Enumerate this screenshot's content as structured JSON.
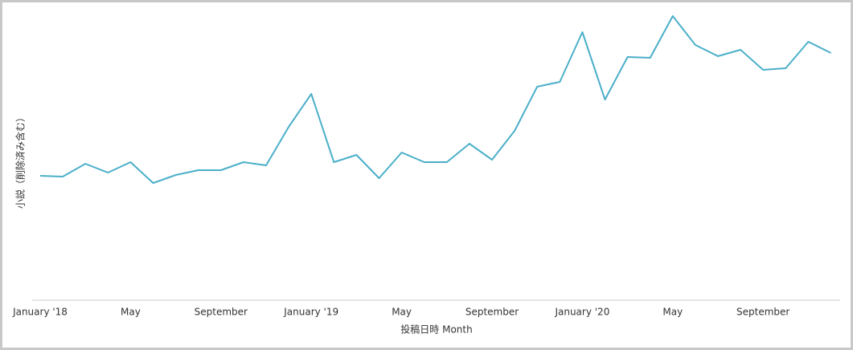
{
  "chart_data": {
    "type": "line",
    "x_label": "投稿日時 Month",
    "y_label": "小説（削除済み含む）",
    "categories": [
      "January '18",
      null,
      null,
      null,
      "May",
      null,
      null,
      null,
      "September",
      null,
      null,
      null,
      "January '19",
      null,
      null,
      null,
      "May",
      null,
      null,
      null,
      "September",
      null,
      null,
      null,
      "January '20",
      null,
      null,
      null,
      "May",
      null,
      null,
      null,
      "September",
      null,
      null,
      null
    ],
    "series": [
      {
        "color": "#4bafc9",
        "values": [
          155,
          154,
          170,
          159,
          172,
          146,
          156,
          162,
          162,
          172,
          168,
          216,
          257,
          172,
          181,
          152,
          184,
          172,
          172,
          195,
          175,
          211,
          266,
          272,
          334,
          250,
          303,
          302,
          354,
          318,
          304,
          312,
          287,
          289,
          322,
          308
        ]
      }
    ],
    "ylim": [
      0,
      360
    ]
  }
}
